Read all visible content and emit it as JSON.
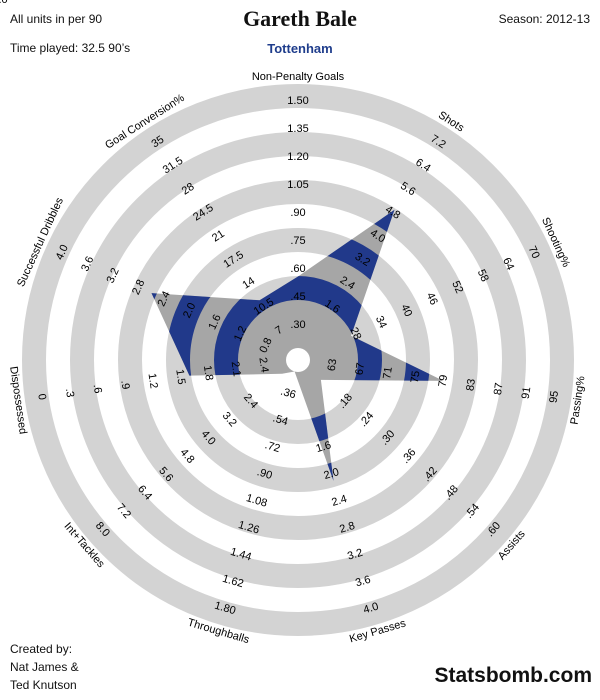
{
  "header": {
    "units_note": "All units in per 90",
    "time_played": "Time played: 32.5 90’s",
    "player": "Gareth Bale",
    "team": "Tottenham",
    "season": "Season: 2012-13"
  },
  "footer": {
    "created_by_label": "Created by:",
    "author_1": "Nat James &",
    "author_2": "Ted Knutson",
    "brand": "Statsbomb.com"
  },
  "colors": {
    "ring": "#d3d3d3",
    "player_fill": "#21398a",
    "overlay": "#a6a6a6"
  },
  "chart_data": {
    "type": "radar",
    "metrics": [
      {
        "name": "Non-Penalty Goals",
        "ticks": [
          ".30",
          ".45",
          ".60",
          ".75",
          ".90",
          "1.05",
          "1.20",
          "1.35",
          "1.50"
        ],
        "value": 0.56
      },
      {
        "name": "Shots",
        "ticks": [
          "1.6",
          "2.4",
          "3.2",
          "4.0",
          "4.8",
          "5.6",
          "6.4",
          "7.2",
          "8.0"
        ],
        "value": 4.9
      },
      {
        "name": "Shooting%",
        "ticks": [
          "28",
          "34",
          "40",
          "46",
          "52",
          "58",
          "64",
          "70"
        ],
        "value": 27
      },
      {
        "name": "Passing%",
        "ticks": [
          "63",
          "67",
          "71",
          "75",
          "79",
          "83",
          "87",
          "91",
          "95"
        ],
        "value": 79
      },
      {
        "name": "Assists",
        "ticks": [
          ".18",
          ".24",
          ".30",
          ".36",
          ".42",
          ".48",
          ".54",
          ".60"
        ],
        "value": 0.11
      },
      {
        "name": "Key Passes",
        "ticks": [
          "1.6",
          "2.0",
          "2.4",
          "2.8",
          "3.2",
          "3.6",
          "4.0"
        ],
        "value": 2.1
      },
      {
        "name": "Throughballs",
        "ticks": [
          ".36",
          ".54",
          ".72",
          ".90",
          "1.08",
          "1.26",
          "1.44",
          "1.62",
          "1.80"
        ],
        "value": 0.02
      },
      {
        "name": "Int+Tackles",
        "ticks": [
          "2.4",
          "3.2",
          "4.0",
          "4.8",
          "5.6",
          "6.4",
          "7.2",
          "8.0"
        ],
        "value": 1.2
      },
      {
        "name": "Dispossessed",
        "ticks": [
          "2.4",
          "2.1",
          "1.8",
          "1.5",
          "1.2",
          ".9",
          ".6",
          ".3",
          "0"
        ],
        "value": 1.6
      },
      {
        "name": "Successful Dribbles",
        "ticks": [
          "0.8",
          "1.2",
          "1.6",
          "2.0",
          "2.4",
          "2.8",
          "3.2",
          "3.6",
          "4.0"
        ],
        "value": 2.6
      },
      {
        "name": "Goal Conversion%",
        "ticks": [
          "7",
          "10.5",
          "14",
          "17.5",
          "21",
          "24.5",
          "28",
          "31.5",
          "35"
        ],
        "value": 11.5
      }
    ]
  }
}
